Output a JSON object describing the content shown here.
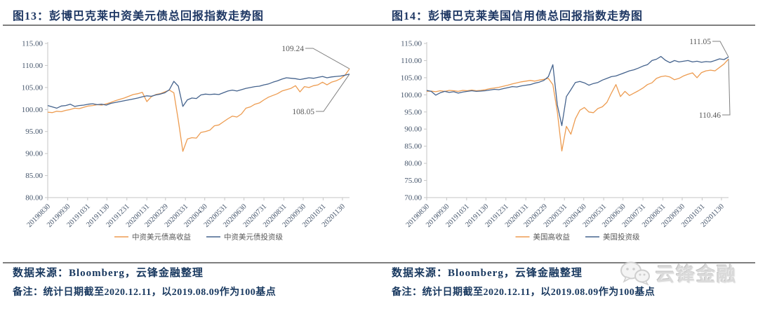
{
  "palette": {
    "title": "#1F3864",
    "footer_text": "#17375E",
    "axis_line": "#C6C6C6",
    "tick_text": "#44546A",
    "annotation_text": "#595959",
    "leader_line": "#808080",
    "legend_text": "#595959",
    "orange_series": "#ED9C51",
    "blue_series": "#45638D",
    "watermark_gray": "#dadada"
  },
  "chart_data": [
    {
      "type": "line",
      "title": "图13：彭博巴克莱中资美元债总回报指数走势图",
      "ylim": [
        80,
        115
      ],
      "y_tick_step": 5,
      "y_tick_labels": [
        "115.00",
        "110.00",
        "105.00",
        "100.00",
        "95.00",
        "90.00",
        "85.00",
        "80.00"
      ],
      "x_tick_labels": [
        "20190830",
        "20190930",
        "20191031",
        "20191130",
        "20191231",
        "20200131",
        "20200229",
        "20200331",
        "20200430",
        "20200531",
        "20200630",
        "20200731",
        "20200831",
        "20200930",
        "20201031",
        "20201130"
      ],
      "x_tick_days": [
        0,
        31,
        62,
        92,
        123,
        154,
        183,
        214,
        244,
        275,
        305,
        336,
        367,
        397,
        428,
        458
      ],
      "x_total_days": 469,
      "grid": "off",
      "legend_position": "bottom",
      "series": [
        {
          "name": "中资美元债高收益",
          "color": "#ED9C51",
          "values": [
            99.4,
            99.3,
            99.6,
            99.5,
            99.8,
            100.0,
            100.3,
            100.2,
            100.5,
            100.8,
            100.9,
            101.1,
            101.0,
            101.3,
            101.6,
            102.0,
            102.3,
            102.6,
            103.0,
            103.4,
            103.6,
            103.9,
            101.8,
            102.9,
            103.4,
            103.6,
            104.0,
            104.4,
            103.8,
            97.5,
            90.5,
            93.3,
            93.6,
            93.5,
            94.8,
            95.0,
            95.3,
            96.3,
            96.5,
            97.2,
            97.9,
            98.5,
            98.3,
            99.0,
            100.3,
            100.6,
            101.2,
            101.5,
            102.2,
            102.8,
            103.2,
            103.6,
            104.2,
            104.5,
            104.8,
            105.4,
            104.0,
            105.2,
            105.0,
            105.4,
            105.6,
            106.2,
            105.6,
            106.2,
            106.5,
            107.0,
            107.8,
            109.24
          ]
        },
        {
          "name": "中资美元债投资级",
          "color": "#45638D",
          "values": [
            100.9,
            100.6,
            100.3,
            100.8,
            100.9,
            101.2,
            100.7,
            100.9,
            101.0,
            101.2,
            101.3,
            101.1,
            101.2,
            101.0,
            101.4,
            101.6,
            101.8,
            102.0,
            102.2,
            102.4,
            102.6,
            102.9,
            103.1,
            103.0,
            103.3,
            103.5,
            103.8,
            104.5,
            106.4,
            105.3,
            100.7,
            102.2,
            102.6,
            102.5,
            103.3,
            103.5,
            103.4,
            103.5,
            103.4,
            103.8,
            104.2,
            104.4,
            104.2,
            104.5,
            104.8,
            105.0,
            105.2,
            105.3,
            105.6,
            105.8,
            106.2,
            106.5,
            106.9,
            107.2,
            107.1,
            107.0,
            106.8,
            107.0,
            107.2,
            107.1,
            107.3,
            107.5,
            107.2,
            107.4,
            107.5,
            107.6,
            107.8,
            108.05
          ]
        }
      ],
      "annotations": [
        {
          "text": "109.24",
          "series": 0,
          "label_x": 433,
          "label_y": 31
        },
        {
          "text": "108.05",
          "series": 1,
          "label_x": 448,
          "label_y": 121
        }
      ]
    },
    {
      "type": "line",
      "title": "图14：彭博巴克莱美国信用债总回报指数走势图",
      "ylim": [
        70,
        115
      ],
      "y_tick_step": 5,
      "y_tick_labels": [
        "115.00",
        "110.00",
        "105.00",
        "100.00",
        "95.00",
        "90.00",
        "85.00",
        "80.00",
        "75.00",
        "70.00"
      ],
      "x_tick_labels": [
        "20190830",
        "20190930",
        "20191031",
        "20191130",
        "20191231",
        "20200131",
        "20200229",
        "20200331",
        "20200430",
        "20200531",
        "20200630",
        "20200731",
        "20200831",
        "20200930",
        "20201031",
        "20201130"
      ],
      "x_tick_days": [
        0,
        31,
        62,
        92,
        123,
        154,
        183,
        214,
        244,
        275,
        305,
        336,
        367,
        397,
        428,
        458
      ],
      "x_total_days": 469,
      "grid": "off",
      "legend_position": "bottom",
      "series": [
        {
          "name": "美国高收益",
          "color": "#ED9C51",
          "values": [
            101.0,
            101.1,
            100.9,
            101.2,
            101.0,
            101.3,
            101.2,
            101.0,
            101.3,
            101.2,
            101.4,
            101.2,
            101.3,
            101.5,
            101.8,
            102.0,
            102.2,
            102.5,
            102.8,
            103.2,
            103.5,
            103.8,
            104.0,
            104.2,
            104.0,
            104.3,
            104.5,
            104.8,
            103.0,
            95.0,
            83.6,
            90.8,
            88.5,
            93.0,
            95.5,
            96.3,
            95.0,
            94.8,
            96.0,
            96.5,
            97.8,
            100.5,
            103.0,
            99.5,
            101.0,
            99.8,
            100.5,
            101.2,
            102.0,
            103.0,
            103.5,
            104.8,
            105.3,
            105.5,
            105.2,
            104.4,
            104.8,
            105.5,
            106.0,
            106.4,
            105.0,
            106.5,
            107.0,
            107.2,
            107.0,
            108.0,
            109.0,
            110.46
          ]
        },
        {
          "name": "美国投资级",
          "color": "#45638D",
          "values": [
            101.3,
            101.0,
            99.9,
            100.6,
            101.0,
            100.7,
            100.9,
            100.5,
            100.8,
            101.0,
            101.2,
            101.0,
            101.1,
            101.2,
            101.4,
            101.6,
            101.5,
            101.8,
            102.1,
            102.4,
            102.3,
            102.6,
            102.8,
            103.0,
            103.4,
            103.7,
            104.2,
            105.3,
            108.8,
            97.0,
            91.0,
            99.5,
            101.5,
            103.6,
            103.9,
            103.5,
            102.8,
            103.3,
            103.6,
            104.3,
            104.8,
            105.3,
            105.5,
            106.0,
            106.5,
            107.0,
            107.3,
            107.8,
            108.4,
            108.8,
            110.0,
            110.4,
            111.2,
            110.1,
            109.4,
            110.0,
            109.6,
            109.8,
            110.0,
            109.6,
            109.8,
            109.5,
            109.7,
            109.6,
            110.0,
            110.5,
            110.3,
            111.05
          ]
        }
      ],
      "annotations": [
        {
          "text": "111.05",
          "series": 1,
          "label_x": 473,
          "label_y": 21
        },
        {
          "text": "110.46",
          "series": 0,
          "label_x": 487,
          "label_y": 126
        }
      ]
    }
  ],
  "footer": {
    "left": {
      "source": "数据来源：Bloomberg，云锋金融整理",
      "note": "备注：统计日期截至2020.12.11，以2019.08.09作为100基点"
    },
    "right": {
      "source": "数据来源：Bloomberg，云锋金融整理",
      "note": "备注：统计日期截至2020.12.11，以2019.08.09作为100基点"
    },
    "watermark_text": "云锋金融"
  }
}
